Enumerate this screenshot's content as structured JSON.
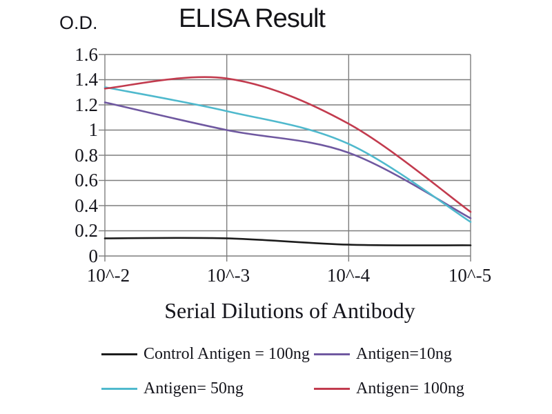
{
  "title": "ELISA Result",
  "chart_data": {
    "type": "line",
    "title": "ELISA Result",
    "ylabel": "O.D.",
    "xlabel": "Serial Dilutions of Antibody",
    "x_tick_labels": [
      "10^-2",
      "10^-3",
      "10^-4",
      "10^-5"
    ],
    "y_ticks": [
      "0",
      "0.2",
      "0.4",
      "0.6",
      "0.8",
      "1",
      "1.2",
      "1.4",
      "1.6"
    ],
    "ylim": [
      0,
      1.6
    ],
    "grid": true,
    "legend_position": "bottom",
    "colors": {
      "grid": "#7d7d7d",
      "text": "#15151c"
    },
    "series": [
      {
        "name": "Control Antigen = 100ng",
        "color": "#1c1c1c",
        "values": [
          0.14,
          0.14,
          0.09,
          0.085
        ]
      },
      {
        "name": "Antigen=10ng",
        "color": "#6f58a0",
        "values": [
          1.22,
          1.0,
          0.82,
          0.3
        ]
      },
      {
        "name": "Antigen= 50ng",
        "color": "#4fb9cd",
        "values": [
          1.34,
          1.15,
          0.89,
          0.27
        ]
      },
      {
        "name": "Antigen= 100ng",
        "color": "#c23b4e",
        "values": [
          1.33,
          1.41,
          1.05,
          0.35
        ]
      }
    ]
  }
}
